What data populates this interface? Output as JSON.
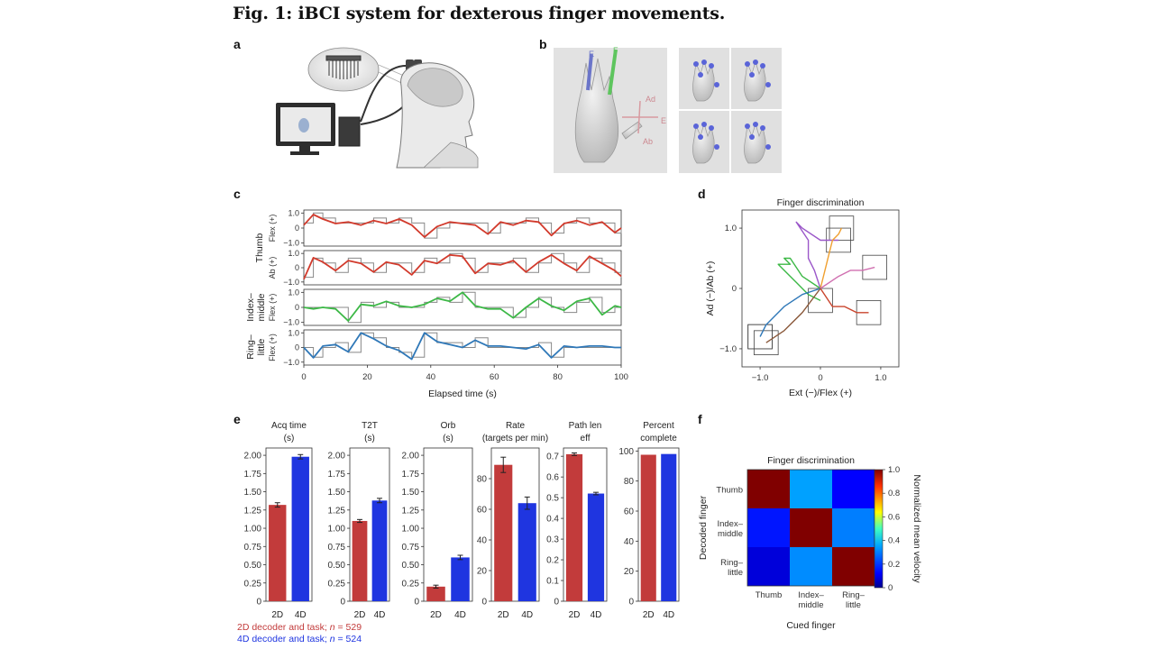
{
  "figure": {
    "title": "Fig. 1: iBCI system for dexterous finger movements.",
    "panels": {
      "a": "a",
      "b": "b",
      "c": "c",
      "d": "d",
      "e": "e",
      "f": "f"
    }
  },
  "panel_b": {
    "labels": {
      "e1": "E",
      "f1": "F",
      "ad": "Ad",
      "e2": "E",
      "ab": "Ab"
    }
  },
  "panel_c": {
    "group_labels": {
      "thumb": "Thumb",
      "index_middle_1": "Index–",
      "index_middle_2": "middle",
      "ring_little_1": "Ring–",
      "ring_little_2": "little"
    },
    "ylabels": {
      "flex": "Flex (+)",
      "ab": "Ab (+)"
    },
    "yticks": [
      "1.0",
      "0",
      "−1.0"
    ],
    "xticks": [
      "0",
      "20",
      "40",
      "60",
      "80",
      "100"
    ],
    "xlabel": "Elapsed time (s)"
  },
  "chart_data": [
    {
      "id": "c",
      "type": "line",
      "title": "",
      "xlabel": "Elapsed time (s)",
      "xlim": [
        0,
        100
      ],
      "ylim": [
        -1.2,
        1.2
      ],
      "series": [
        {
          "name": "Thumb Flex (+)",
          "color": "#d23a2c",
          "x": [
            0,
            3,
            6,
            10,
            14,
            18,
            22,
            26,
            30,
            34,
            38,
            42,
            46,
            50,
            54,
            58,
            62,
            66,
            70,
            74,
            78,
            82,
            86,
            90,
            94,
            98,
            100
          ],
          "y": [
            0.2,
            0.9,
            0.6,
            0.3,
            0.4,
            0.2,
            0.5,
            0.3,
            0.6,
            0.2,
            -0.6,
            0.1,
            0.4,
            0.3,
            0.2,
            -0.4,
            0.4,
            0.2,
            0.5,
            0.4,
            -0.5,
            0.3,
            0.5,
            0.2,
            0.4,
            -0.3,
            0.0
          ]
        },
        {
          "name": "Thumb Ab (+)",
          "color": "#d23a2c",
          "x": [
            0,
            3,
            6,
            10,
            14,
            18,
            22,
            26,
            30,
            34,
            38,
            42,
            46,
            50,
            54,
            58,
            62,
            66,
            70,
            74,
            78,
            82,
            86,
            90,
            94,
            98,
            100
          ],
          "y": [
            -0.8,
            0.7,
            0.4,
            -0.2,
            0.5,
            0.3,
            -0.3,
            0.4,
            0.2,
            -0.5,
            0.5,
            0.3,
            0.9,
            0.8,
            -0.4,
            0.3,
            0.2,
            0.5,
            -0.3,
            0.4,
            0.9,
            0.3,
            -0.2,
            0.8,
            0.3,
            -0.2,
            -0.6
          ]
        },
        {
          "name": "Index–middle Flex (+)",
          "color": "#3cb846",
          "x": [
            0,
            3,
            6,
            10,
            14,
            18,
            22,
            26,
            30,
            34,
            38,
            42,
            46,
            50,
            54,
            58,
            62,
            66,
            70,
            74,
            78,
            82,
            86,
            90,
            94,
            98,
            100
          ],
          "y": [
            0.0,
            -0.1,
            0.0,
            -0.1,
            -0.9,
            0.2,
            0.1,
            0.4,
            0.1,
            0.0,
            0.2,
            0.6,
            0.4,
            1.0,
            0.1,
            -0.1,
            -0.1,
            -0.7,
            0.0,
            0.6,
            0.1,
            -0.2,
            0.4,
            0.6,
            -0.5,
            0.1,
            0.0
          ]
        },
        {
          "name": "Ring–little Flex (+)",
          "color": "#2f78b8",
          "x": [
            0,
            3,
            6,
            10,
            14,
            18,
            22,
            26,
            30,
            34,
            38,
            42,
            46,
            50,
            54,
            58,
            62,
            66,
            70,
            74,
            78,
            82,
            86,
            90,
            94,
            98,
            100
          ],
          "y": [
            0.0,
            -0.7,
            0.1,
            0.2,
            -0.3,
            1.0,
            0.6,
            0.1,
            -0.2,
            -0.8,
            1.0,
            0.4,
            0.2,
            0.0,
            0.5,
            0.1,
            0.1,
            0.0,
            -0.1,
            0.2,
            -0.7,
            0.1,
            0.0,
            0.1,
            0.1,
            0.0,
            0.0
          ]
        }
      ]
    },
    {
      "id": "d",
      "type": "line",
      "title": "Finger discrimination",
      "xlabel": "Ext (−)/Flex (+)",
      "ylabel": "Ad (−)/Ab (+)",
      "xlim": [
        -1.3,
        1.3
      ],
      "ylim": [
        -1.3,
        1.3
      ],
      "xticks": [
        "−1.0",
        "0",
        "1.0"
      ],
      "yticks": [
        "1.0",
        "0",
        "−1.0"
      ],
      "series": [
        {
          "name": "green",
          "color": "#3cb846",
          "x": [
            0,
            -0.3,
            -0.5,
            -0.6,
            -0.5,
            -0.7,
            -0.6,
            -0.4,
            -0.2,
            0.0
          ],
          "y": [
            0,
            0.2,
            0.5,
            0.5,
            0.4,
            0.4,
            0.3,
            0.1,
            -0.1,
            -0.2
          ]
        },
        {
          "name": "purple",
          "color": "#9b57c9",
          "x": [
            0,
            -0.1,
            -0.2,
            -0.2,
            -0.4,
            -0.3,
            0.0,
            0.2,
            0.3
          ],
          "y": [
            0,
            0.3,
            0.5,
            0.8,
            1.1,
            1.0,
            0.8,
            0.8,
            0.8
          ]
        },
        {
          "name": "orange",
          "color": "#f0a030",
          "x": [
            0,
            0.1,
            0.15,
            0.2,
            0.3,
            0.35
          ],
          "y": [
            0,
            0.4,
            0.6,
            0.8,
            0.9,
            1.0
          ]
        },
        {
          "name": "pink",
          "color": "#d06fb0",
          "x": [
            0,
            0.3,
            0.5,
            0.7,
            0.9
          ],
          "y": [
            0,
            0.2,
            0.3,
            0.3,
            0.35
          ]
        },
        {
          "name": "red",
          "color": "#c9442c",
          "x": [
            0,
            0.2,
            0.4,
            0.6,
            0.8
          ],
          "y": [
            0,
            -0.3,
            -0.3,
            -0.4,
            -0.4
          ]
        },
        {
          "name": "blue",
          "color": "#2f78b8",
          "x": [
            0,
            -0.3,
            -0.6,
            -0.9,
            -1.0
          ],
          "y": [
            0,
            -0.1,
            -0.3,
            -0.6,
            -0.8
          ]
        },
        {
          "name": "brown",
          "color": "#8b5a3c",
          "x": [
            0,
            -0.3,
            -0.6,
            -0.9
          ],
          "y": [
            0,
            -0.4,
            -0.7,
            -0.9
          ]
        }
      ]
    },
    {
      "id": "e",
      "type": "bar",
      "legend": [
        "2D decoder and task; n = 529",
        "4D decoder and task; n = 524"
      ],
      "legend_parts": [
        {
          "text": "2D decoder and task; ",
          "n": "n",
          "rest": " = 529"
        },
        {
          "text": "4D decoder and task; ",
          "n": "n",
          "rest": " = 524"
        }
      ],
      "colors": {
        "2D": "#c23b3b",
        "4D": "#1f35e0"
      },
      "categories": [
        "2D",
        "4D"
      ],
      "subplots": [
        {
          "title": [
            "Acq time",
            "(s)"
          ],
          "ylim": [
            0,
            2.1
          ],
          "yticks": [
            "0",
            "0.25",
            "0.50",
            "0.75",
            "1.00",
            "1.25",
            "1.50",
            "1.75",
            "2.00"
          ],
          "values": [
            1.32,
            1.98
          ],
          "errors": [
            0.03,
            0.03
          ]
        },
        {
          "title": [
            "T2T",
            "(s)"
          ],
          "ylim": [
            0,
            2.1
          ],
          "yticks": [
            "0",
            "0.25",
            "0.50",
            "0.75",
            "1.00",
            "1.25",
            "1.50",
            "1.75",
            "2.00"
          ],
          "values": [
            1.1,
            1.38
          ],
          "errors": [
            0.02,
            0.03
          ]
        },
        {
          "title": [
            "Orb",
            "(s)"
          ],
          "ylim": [
            0,
            2.1
          ],
          "yticks": [
            "0",
            "0.25",
            "0.50",
            "0.75",
            "1.00",
            "1.25",
            "1.50",
            "1.75",
            "2.00"
          ],
          "values": [
            0.2,
            0.6
          ],
          "errors": [
            0.02,
            0.03
          ]
        },
        {
          "title": [
            "Rate",
            "(targets per min)"
          ],
          "ylim": [
            0,
            100
          ],
          "yticks": [
            "0",
            "20",
            "40",
            "60",
            "80"
          ],
          "values": [
            89,
            64
          ],
          "errors": [
            5,
            4
          ]
        },
        {
          "title": [
            "Path len",
            "eff"
          ],
          "ylim": [
            0,
            0.74
          ],
          "yticks": [
            "0",
            "0.1",
            "0.2",
            "0.3",
            "0.4",
            "0.5",
            "0.6",
            "0.7"
          ],
          "values": [
            0.71,
            0.52
          ],
          "errors": [
            0.006,
            0.006
          ]
        },
        {
          "title": [
            "Percent",
            "complete"
          ],
          "ylim": [
            0,
            102
          ],
          "yticks": [
            "0",
            "20",
            "40",
            "60",
            "80",
            "100"
          ],
          "values": [
            97.5,
            98
          ],
          "errors": [
            0,
            0
          ]
        }
      ]
    },
    {
      "id": "f",
      "type": "heatmap",
      "title": "Finger discrimination",
      "xlabel": "Cued finger",
      "ylabel": "Decoded finger",
      "x_categories": [
        "Thumb",
        "Index–middle",
        "Ring–little"
      ],
      "x_tick_lines": [
        [
          "Thumb"
        ],
        [
          "Index–",
          "middle"
        ],
        [
          "Ring–",
          "little"
        ]
      ],
      "y_categories": [
        "Thumb",
        "Index–middle",
        "Ring–little"
      ],
      "y_tick_lines": [
        [
          "Thumb"
        ],
        [
          "Index–",
          "middle"
        ],
        [
          "Ring–",
          "little"
        ]
      ],
      "values": [
        [
          1.0,
          0.35,
          0.12
        ],
        [
          0.15,
          1.0,
          0.3
        ],
        [
          0.08,
          0.32,
          1.0
        ]
      ],
      "colorbar": {
        "label": "Normalized mean velocity",
        "ticks": [
          "0",
          "0.2",
          "0.4",
          "0.6",
          "0.8",
          "1.0"
        ],
        "range": [
          0,
          1
        ]
      }
    }
  ]
}
